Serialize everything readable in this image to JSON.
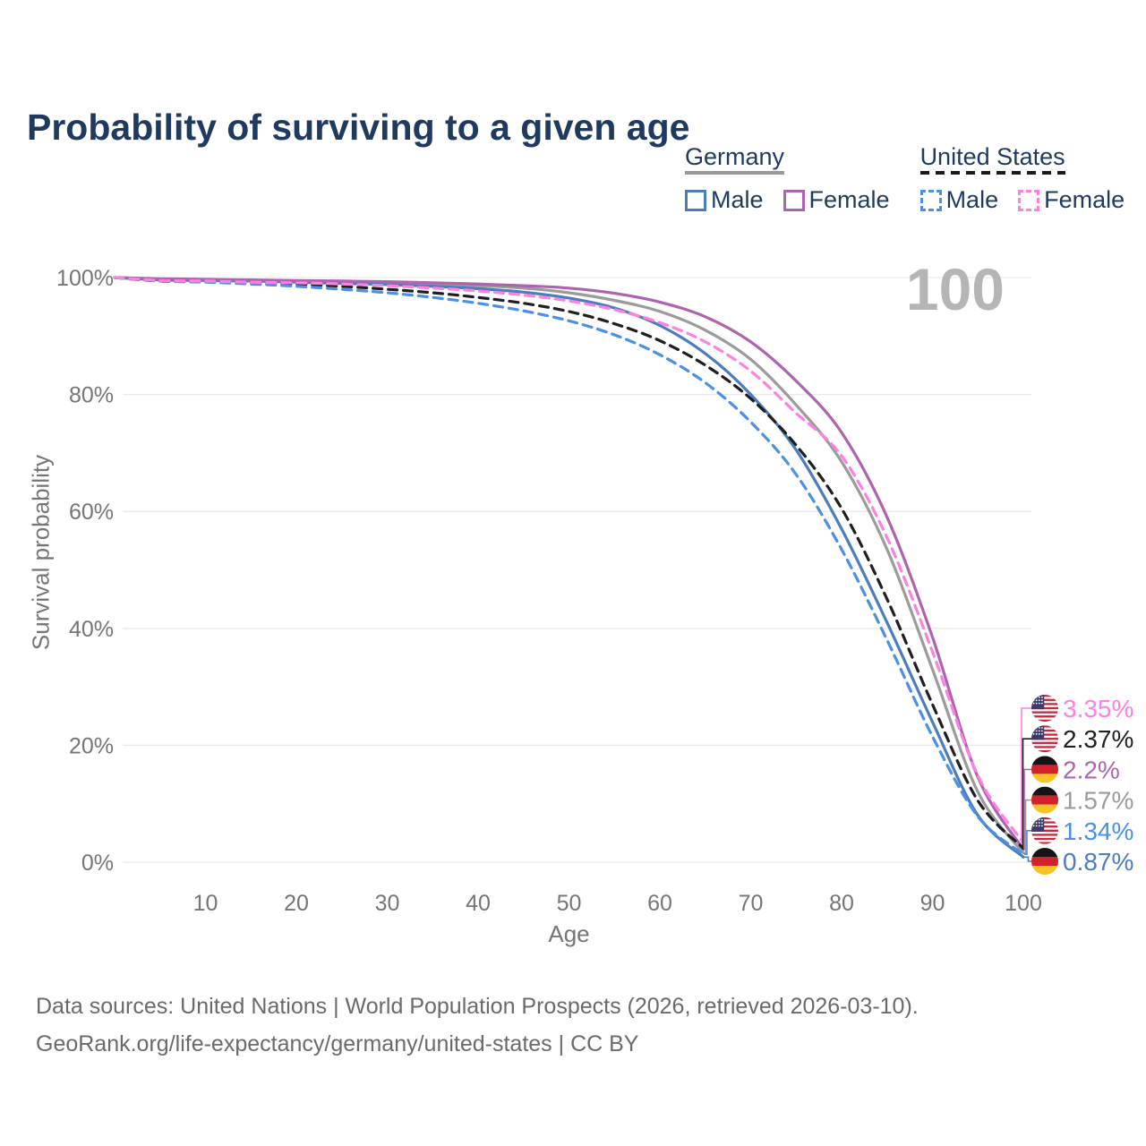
{
  "title": "Probability of surviving to a given age",
  "age_ticker": "100",
  "legend": {
    "groups": [
      {
        "label": "Germany",
        "underline_style": "solid",
        "underline_color": "#999999",
        "items": [
          {
            "label": "Male",
            "color": "#4d7cbe",
            "dashed": false
          },
          {
            "label": "Female",
            "color": "#ad63b0",
            "dashed": false
          }
        ]
      },
      {
        "label": "United States",
        "underline_style": "dashed",
        "underline_color": "#1a1a1a",
        "items": [
          {
            "label": "Male",
            "color": "#4a90e8",
            "dashed": true
          },
          {
            "label": "Female",
            "color": "#ff80e0",
            "dashed": true
          }
        ]
      }
    ]
  },
  "chart_data": {
    "type": "line",
    "title": "Probability of surviving to a given age",
    "xlabel": "Age",
    "ylabel": "Survival probability",
    "xlim": [
      0,
      100
    ],
    "ylim": [
      0,
      100
    ],
    "grid": true,
    "x_ticks": [
      10,
      20,
      30,
      40,
      50,
      60,
      70,
      80,
      90,
      100
    ],
    "y_ticks": [
      {
        "value": 100,
        "label": "100%"
      },
      {
        "value": 80,
        "label": "80%"
      },
      {
        "value": 60,
        "label": "60%"
      },
      {
        "value": 40,
        "label": "40%"
      },
      {
        "value": 20,
        "label": "20%"
      },
      {
        "value": 0,
        "label": "0%"
      }
    ],
    "x": [
      0,
      5,
      10,
      15,
      20,
      25,
      30,
      35,
      40,
      45,
      50,
      55,
      60,
      65,
      70,
      75,
      80,
      85,
      90,
      95,
      100
    ],
    "series": [
      {
        "id": "germany-total",
        "country": "Germany",
        "sex": "total",
        "flag": "de",
        "color": "#9b9b9b",
        "dashed": false,
        "end_label": "1.57%",
        "values": [
          100,
          99.7,
          99.6,
          99.5,
          99.4,
          99.3,
          99.1,
          98.9,
          98.6,
          98.2,
          97.4,
          96.1,
          94.2,
          91.0,
          86.0,
          78.2,
          68.5,
          53.5,
          33.0,
          12.0,
          1.57
        ]
      },
      {
        "id": "germany-male",
        "country": "Germany",
        "sex": "male",
        "flag": "de",
        "color": "#4d7cbe",
        "dashed": false,
        "end_label": "0.87%",
        "values": [
          100,
          99.6,
          99.5,
          99.4,
          99.2,
          99.0,
          98.8,
          98.5,
          98.1,
          97.5,
          96.5,
          94.8,
          91.8,
          87.0,
          80.0,
          70.5,
          57.0,
          41.0,
          24.0,
          8.0,
          0.87
        ]
      },
      {
        "id": "germany-female",
        "country": "Germany",
        "sex": "female",
        "flag": "de",
        "color": "#ad63b0",
        "dashed": false,
        "end_label": "2.2%",
        "values": [
          100,
          99.8,
          99.7,
          99.6,
          99.5,
          99.4,
          99.3,
          99.1,
          98.9,
          98.6,
          98.2,
          97.3,
          95.8,
          93.3,
          89.0,
          82.3,
          73.5,
          59.0,
          38.5,
          14.5,
          2.2
        ]
      },
      {
        "id": "us-total",
        "country": "United States",
        "sex": "total",
        "flag": "us",
        "color": "#1f1f1f",
        "dashed": true,
        "end_label": "2.37%",
        "values": [
          100,
          99.4,
          99.3,
          99.1,
          98.9,
          98.5,
          98.0,
          97.4,
          96.6,
          95.6,
          94.2,
          92.1,
          89.2,
          85.0,
          79.3,
          71.3,
          60.5,
          45.0,
          27.0,
          10.5,
          2.37
        ]
      },
      {
        "id": "us-male",
        "country": "United States",
        "sex": "male",
        "flag": "us",
        "color": "#4a90e8",
        "dashed": true,
        "end_label": "1.34%",
        "values": [
          100,
          99.4,
          99.2,
          98.9,
          98.5,
          98.0,
          97.4,
          96.6,
          95.6,
          94.3,
          92.6,
          90.2,
          86.8,
          82.0,
          75.3,
          66.3,
          53.5,
          38.0,
          21.5,
          7.8,
          1.34
        ]
      },
      {
        "id": "us-female",
        "country": "United States",
        "sex": "female",
        "flag": "us",
        "color": "#ff80e0",
        "dashed": true,
        "end_label": "3.35%",
        "values": [
          100,
          99.5,
          99.4,
          99.2,
          99.1,
          98.9,
          98.6,
          98.2,
          97.7,
          97.0,
          96.0,
          94.5,
          92.3,
          89.0,
          84.0,
          76.8,
          69.5,
          55.5,
          36.0,
          14.8,
          3.35
        ]
      }
    ]
  },
  "colors": {
    "grid": "#e9e9e9",
    "axis_text": "#757575",
    "watermark": "#b5b5b5",
    "title_text": "#1e3a5f"
  },
  "footer": {
    "line1": "Data sources: United Nations | World Population Prospects (2026, retrieved 2026-03-10).",
    "line2": "GeoRank.org/life-expectancy/germany/united-states | CC BY"
  }
}
